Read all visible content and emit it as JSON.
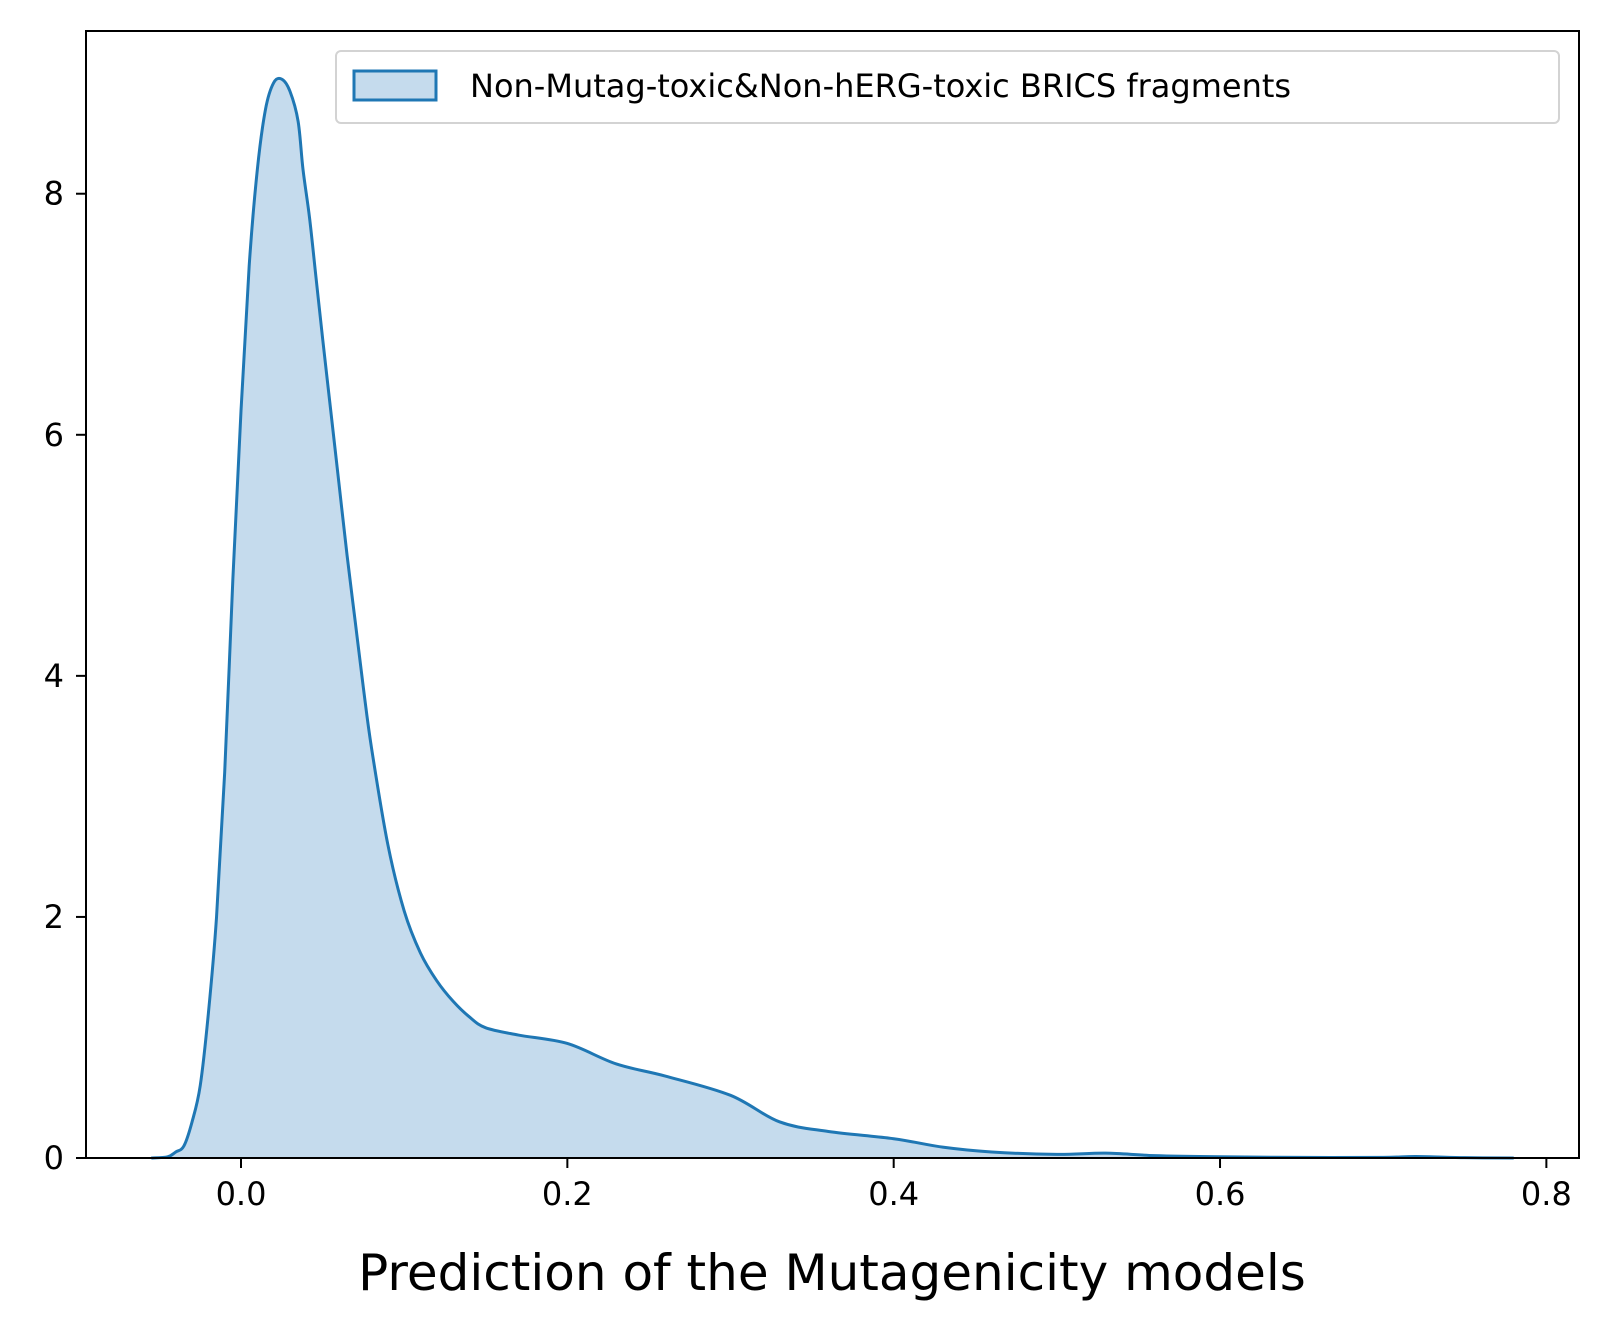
{
  "chart_data": {
    "type": "area",
    "title": "",
    "xlabel": "Prediction of the Mutagenicity models",
    "ylabel": "",
    "xlim": [
      -0.095,
      0.82
    ],
    "ylim": [
      0,
      9.35
    ],
    "x_ticks": [
      0.0,
      0.2,
      0.4,
      0.6,
      0.8
    ],
    "x_tick_labels": [
      "0.0",
      "0.2",
      "0.4",
      "0.6",
      "0.8"
    ],
    "y_ticks": [
      0,
      2,
      4,
      6,
      8
    ],
    "y_tick_labels": [
      "0",
      "2",
      "4",
      "6",
      "8"
    ],
    "grid": false,
    "legend_position": "top-right",
    "colors": {
      "line": "#1f77b4",
      "fill": "#c5dbed",
      "legend_frame": "#d3d3d3"
    },
    "series": [
      {
        "name": "Non-Mutag-toxic&Non-hERG-toxic BRICS fragments",
        "x": [
          -0.055,
          -0.045,
          -0.04,
          -0.035,
          -0.03,
          -0.025,
          -0.02,
          -0.015,
          -0.01,
          -0.005,
          0.0,
          0.005,
          0.01,
          0.015,
          0.02,
          0.025,
          0.03,
          0.035,
          0.038,
          0.042,
          0.046,
          0.05,
          0.055,
          0.06,
          0.065,
          0.07,
          0.075,
          0.08,
          0.09,
          0.1,
          0.11,
          0.12,
          0.13,
          0.14,
          0.15,
          0.17,
          0.2,
          0.23,
          0.26,
          0.3,
          0.33,
          0.36,
          0.4,
          0.43,
          0.46,
          0.5,
          0.53,
          0.56,
          0.6,
          0.65,
          0.7,
          0.72,
          0.75,
          0.78
        ],
        "y": [
          0.0,
          0.01,
          0.05,
          0.1,
          0.3,
          0.6,
          1.2,
          2.0,
          3.2,
          4.8,
          6.2,
          7.4,
          8.2,
          8.7,
          8.92,
          8.95,
          8.85,
          8.6,
          8.2,
          7.8,
          7.3,
          6.8,
          6.2,
          5.6,
          5.0,
          4.45,
          3.9,
          3.4,
          2.6,
          2.05,
          1.7,
          1.47,
          1.3,
          1.17,
          1.08,
          1.02,
          0.95,
          0.78,
          0.68,
          0.52,
          0.3,
          0.22,
          0.16,
          0.09,
          0.05,
          0.03,
          0.04,
          0.02,
          0.01,
          0.005,
          0.005,
          0.012,
          0.003,
          0.0
        ]
      }
    ]
  }
}
